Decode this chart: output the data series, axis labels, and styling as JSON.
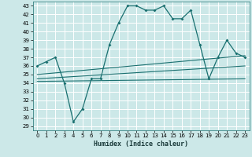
{
  "xlabel": "Humidex (Indice chaleur)",
  "bg_color": "#cce8e8",
  "line_color": "#1a7070",
  "grid_color": "#ffffff",
  "xlim": [
    -0.5,
    23.5
  ],
  "ylim": [
    28.5,
    43.5
  ],
  "yticks": [
    29,
    30,
    31,
    32,
    33,
    34,
    35,
    36,
    37,
    38,
    39,
    40,
    41,
    42,
    43
  ],
  "xticks": [
    0,
    1,
    2,
    3,
    4,
    5,
    6,
    7,
    8,
    9,
    10,
    11,
    12,
    13,
    14,
    15,
    16,
    17,
    18,
    19,
    20,
    21,
    22,
    23
  ],
  "series1": {
    "x": [
      0,
      1,
      2,
      3,
      4,
      5,
      6,
      7,
      8,
      9,
      10,
      11,
      12,
      13,
      14,
      15,
      16,
      17,
      18,
      19,
      20,
      21,
      22,
      23
    ],
    "y": [
      36,
      36.5,
      37,
      34,
      29.5,
      31,
      34.5,
      34.5,
      38.5,
      41,
      43,
      43,
      42.5,
      42.5,
      43,
      41.5,
      41.5,
      42.5,
      38.5,
      34.5,
      37,
      39,
      37.5,
      37
    ]
  },
  "series2": {
    "x": [
      0,
      23
    ],
    "y": [
      34.2,
      34.5
    ]
  },
  "series3": {
    "x": [
      0,
      23
    ],
    "y": [
      34.5,
      36.0
    ]
  },
  "series4": {
    "x": [
      0,
      23
    ],
    "y": [
      35.0,
      37.2
    ]
  }
}
